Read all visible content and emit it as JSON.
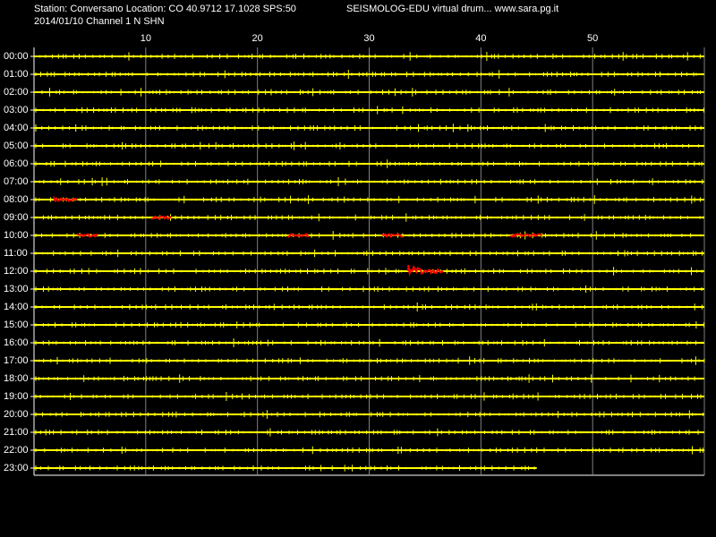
{
  "chart_data": {
    "type": "drum",
    "title": "Station: Conversano Location: CO 40.9712 17.1028 SPS:50",
    "subtitle": "SEISMOLOG-EDU virtual drum... www.sara.pg.it",
    "caption": "2014/01/10  Channel 1 N SHN",
    "xlim": [
      0,
      60
    ],
    "xticks": [
      10,
      20,
      30,
      40,
      50
    ],
    "grid": true,
    "categories": [
      "00:00",
      "01:00",
      "02:00",
      "03:00",
      "04:00",
      "05:00",
      "06:00",
      "07:00",
      "08:00",
      "09:00",
      "10:00",
      "11:00",
      "12:00",
      "13:00",
      "14:00",
      "15:00",
      "16:00",
      "17:00",
      "18:00",
      "19:00",
      "20:00",
      "21:00",
      "22:00",
      "23:00"
    ],
    "values": [
      60,
      60,
      60,
      60,
      60,
      60,
      60,
      60,
      60,
      60,
      60,
      60,
      60,
      60,
      60,
      60,
      60,
      60,
      60,
      60,
      60,
      60,
      60,
      45
    ],
    "color": "#ffff00",
    "event_color": "#ff0000",
    "events": [
      {
        "row": 8,
        "start": 1.8,
        "end": 3.9
      },
      {
        "row": 9,
        "start": 10.6,
        "end": 12.4
      },
      {
        "row": 10,
        "start": 3.9,
        "end": 5.8
      },
      {
        "row": 10,
        "start": 22.8,
        "end": 24.7
      },
      {
        "row": 10,
        "start": 31.2,
        "end": 33.1
      },
      {
        "row": 10,
        "start": 42.7,
        "end": 45.5
      },
      {
        "row": 12,
        "start": 33.5,
        "end": 36.7
      }
    ]
  }
}
